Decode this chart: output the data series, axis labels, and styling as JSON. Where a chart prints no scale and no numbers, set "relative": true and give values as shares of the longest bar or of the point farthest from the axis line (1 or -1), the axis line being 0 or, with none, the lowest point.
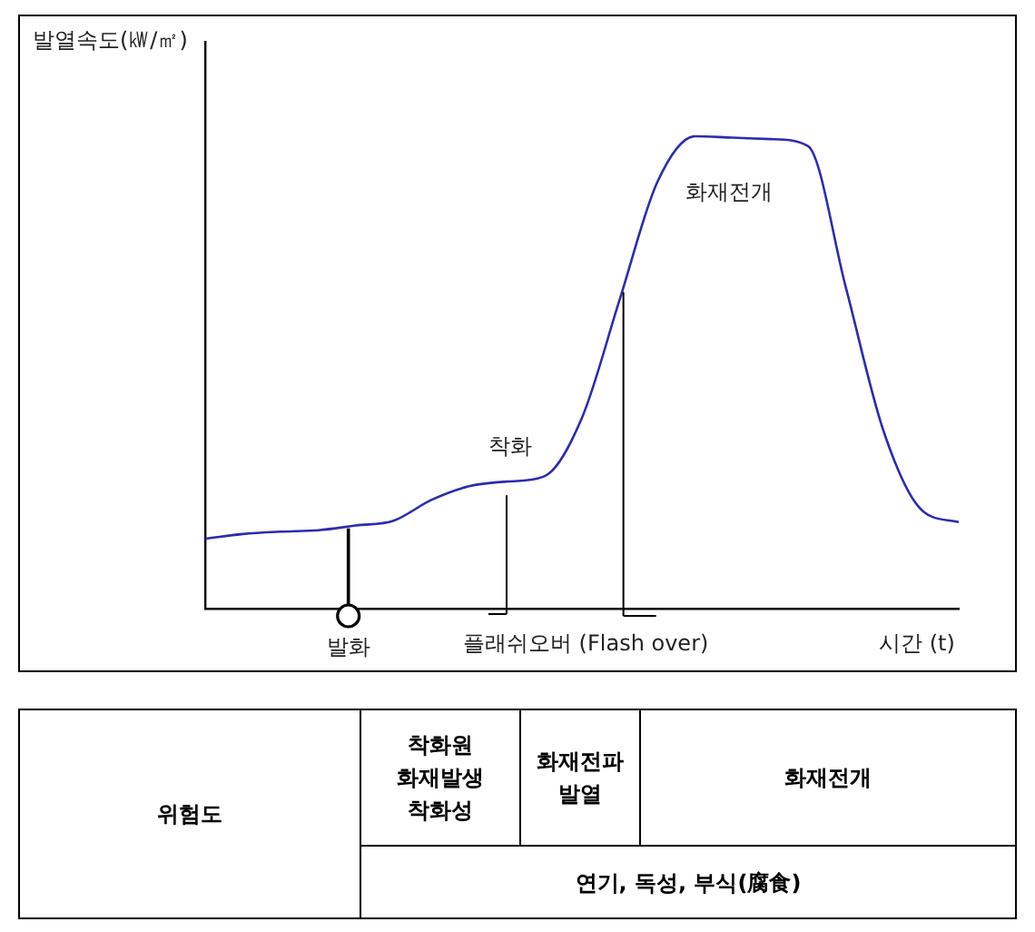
{
  "chart_data": {
    "type": "line",
    "relative": true,
    "xlabel": "시간 (t)",
    "ylabel": "발열속도(㎾/㎡)",
    "categories": [
      null,
      null,
      null,
      null,
      null,
      null,
      null,
      null,
      null,
      null,
      null,
      null,
      null,
      null,
      null,
      null,
      null,
      null,
      null,
      null,
      null
    ],
    "series": [
      {
        "color": "#2b2bb0",
        "values": [
          0.148,
          0.158,
          0.163,
          0.166,
          0.176,
          0.186,
          0.23,
          0.259,
          0.269,
          0.28,
          0.404,
          0.654,
          0.903,
          1.0,
          0.997,
          0.994,
          0.979,
          0.681,
          0.377,
          0.21,
          0.183
        ]
      }
    ],
    "marker": "none",
    "line_style": "solid",
    "legend": false,
    "grid": false,
    "annotations": [
      "착화",
      "화재전개",
      "발화",
      "플래쉬오버 (Flash over)",
      "위험도",
      "착화원\n화재발생\n착화성",
      "화재전파\n발열",
      "화재전개",
      "연기, 독성, 부식(腐食)"
    ]
  }
}
